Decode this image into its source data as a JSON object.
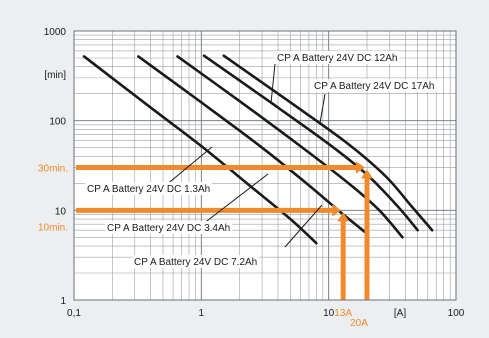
{
  "chart_data": {
    "type": "line",
    "title": "",
    "xlabel": "[A]",
    "ylabel": "[min]",
    "xscale": "log",
    "yscale": "log",
    "xlim": [
      0.1,
      100
    ],
    "ylim": [
      1,
      1000
    ],
    "grid": true,
    "legend": "none",
    "x_ticks": [
      {
        "value": 0.1,
        "label": "0,1"
      },
      {
        "value": 1,
        "label": "1"
      },
      {
        "value": 10,
        "label": "10"
      },
      {
        "value": 100,
        "label": "100"
      }
    ],
    "y_ticks": [
      {
        "value": 1,
        "label": "1"
      },
      {
        "value": 10,
        "label": "10"
      },
      {
        "value": 100,
        "label": "100"
      },
      {
        "value": 1000,
        "label": "1000"
      }
    ],
    "series": [
      {
        "name": "CP A Battery 24V DC 1.3Ah",
        "points": [
          [
            0.12,
            520
          ],
          [
            0.4,
            140
          ],
          [
            1.0,
            52
          ],
          [
            2.5,
            18
          ],
          [
            5.0,
            8
          ],
          [
            8.0,
            4.3
          ]
        ]
      },
      {
        "name": "CP A Battery 24V DC 3.4Ah",
        "points": [
          [
            0.32,
            520
          ],
          [
            1.0,
            160
          ],
          [
            3.0,
            50
          ],
          [
            7.0,
            19
          ],
          [
            13.0,
            9
          ],
          [
            20.0,
            5.5
          ]
        ]
      },
      {
        "name": "CP A Battery 24V DC 7.2Ah",
        "points": [
          [
            0.65,
            520
          ],
          [
            2.0,
            165
          ],
          [
            6.0,
            52
          ],
          [
            15.0,
            19
          ],
          [
            25.0,
            10
          ],
          [
            38.0,
            5
          ]
        ]
      },
      {
        "name": "CP A Battery 24V DC 12Ah",
        "points": [
          [
            1.05,
            530
          ],
          [
            3.5,
            160
          ],
          [
            10.0,
            55
          ],
          [
            20.0,
            25
          ],
          [
            35.0,
            11
          ],
          [
            50.0,
            6
          ]
        ]
      },
      {
        "name": "CP A Battery 24V DC 17Ah",
        "points": [
          [
            1.5,
            530
          ],
          [
            5.0,
            160
          ],
          [
            14.0,
            56
          ],
          [
            28.0,
            24
          ],
          [
            45.0,
            11
          ],
          [
            65.0,
            6
          ]
        ]
      }
    ],
    "markers": [
      {
        "label": "30min.",
        "time_min": 30,
        "current_label": "20A",
        "current_a": 20
      },
      {
        "label": "10min.",
        "time_min": 10,
        "current_label": "13A",
        "current_a": 13
      }
    ],
    "colors": {
      "curve": "#1a1a1a",
      "marker": "#f08a2c",
      "grid": "#9aa0a6",
      "panel": "#eceef0"
    }
  }
}
